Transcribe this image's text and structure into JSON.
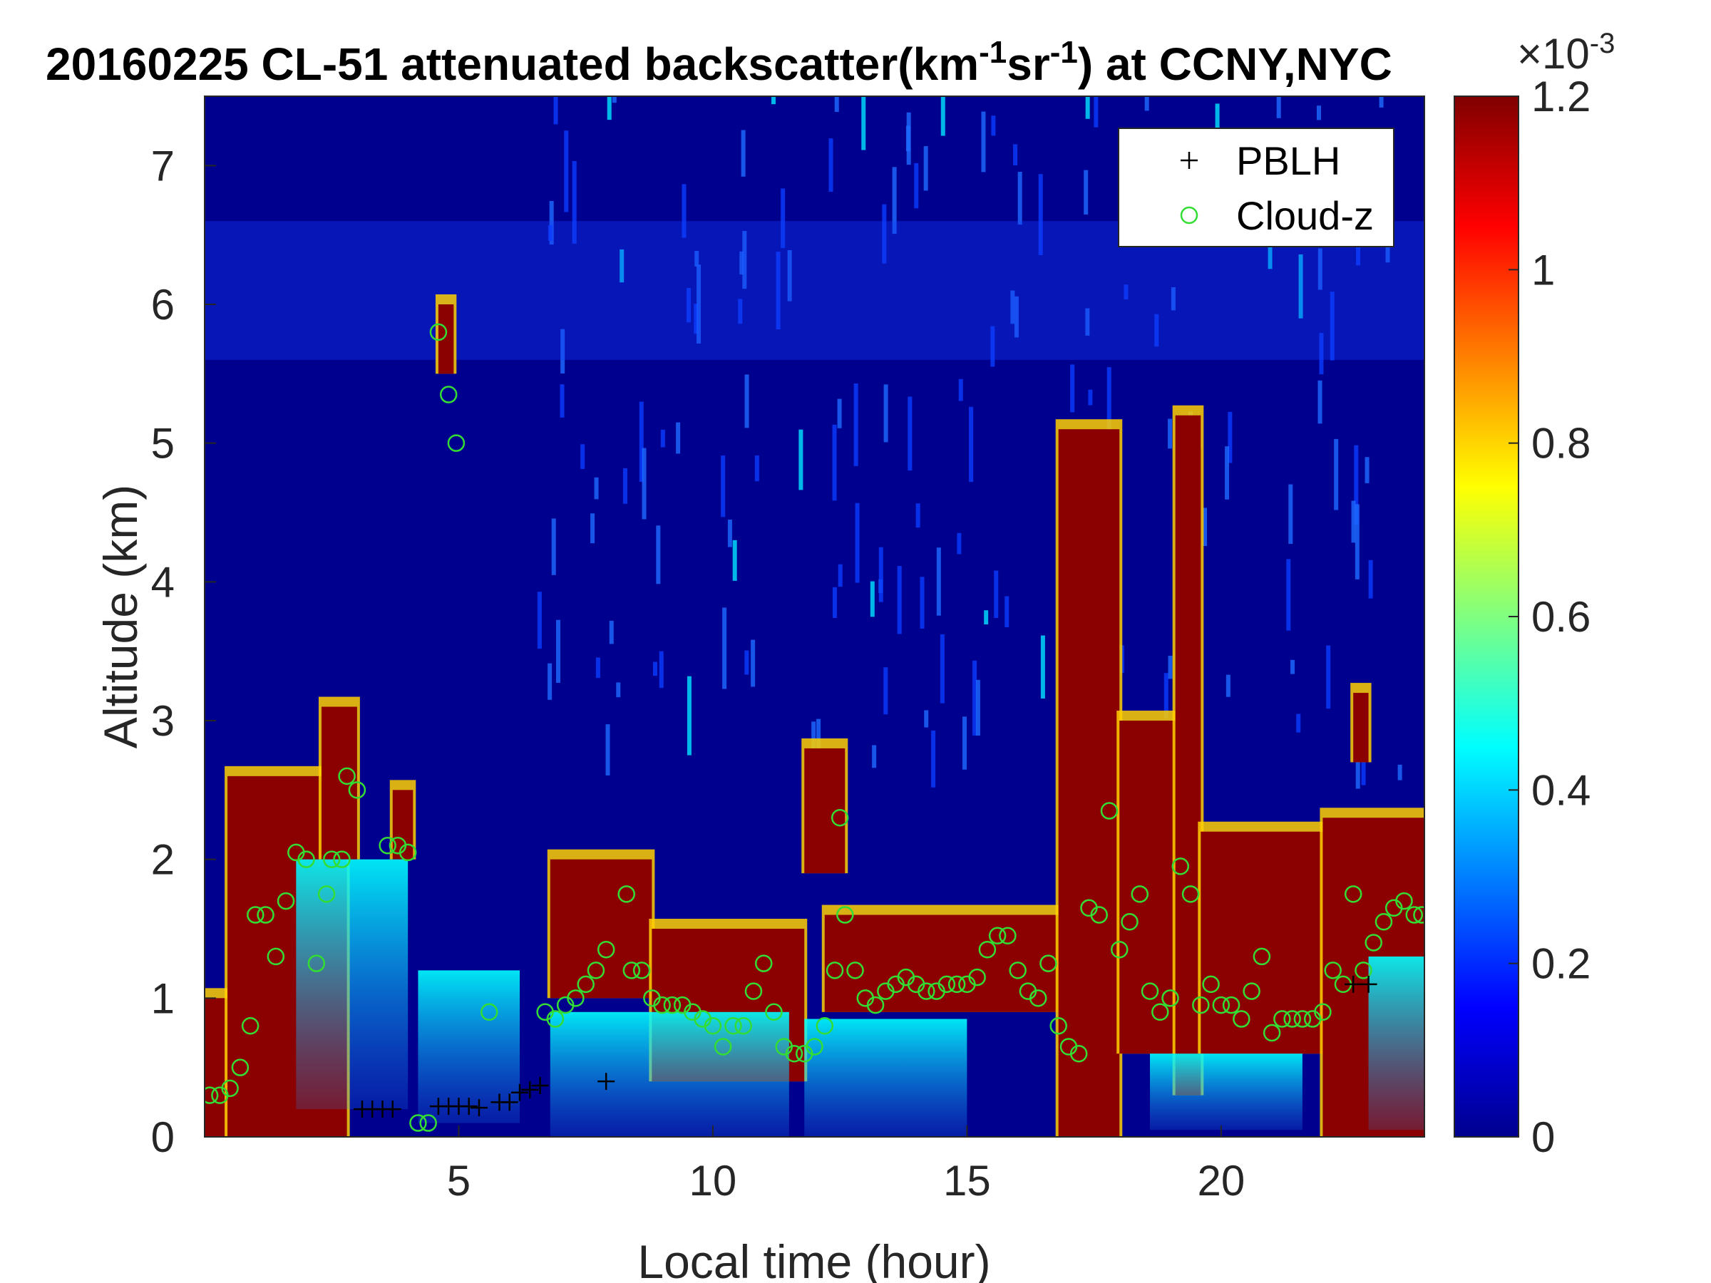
{
  "chart_data": {
    "type": "heatmap",
    "title_main": "20160225  CL-51 attenuated backscatter(km",
    "title_exp1": "-1",
    "title_mid": "sr",
    "title_exp2": "-1",
    "title_end": ") at CCNY,NYC",
    "xlabel": "Local time (hour)",
    "ylabel": "Altitude (km)",
    "xlim": [
      0,
      24
    ],
    "ylim": [
      0,
      7.5
    ],
    "xticks": [
      5,
      10,
      15,
      20
    ],
    "yticks": [
      0,
      1,
      2,
      3,
      4,
      5,
      6,
      7
    ],
    "colorbar": {
      "colormap": "jet",
      "clim": [
        0,
        1.2
      ],
      "ticks": [
        0,
        0.2,
        0.4,
        0.6,
        0.8,
        1,
        1.2
      ],
      "ticklabels": [
        "0",
        "0.2",
        "0.4",
        "0.6",
        "0.8",
        "1",
        "1.2"
      ],
      "exponent_base": "×10",
      "exponent_power": "-3"
    },
    "legend": {
      "placement": "top-right",
      "entries": [
        {
          "label": "PBLH",
          "marker": "+",
          "color": "#000000"
        },
        {
          "label": "Cloud-z",
          "marker": "o",
          "color": "#33dd33"
        }
      ]
    },
    "background_range": {
      "low": 0.0,
      "high": 1.2
    },
    "field_description_note": "",
    "cloud_columns": [
      {
        "x0": 0.0,
        "x1": 0.45,
        "top": 1.0,
        "bottom": 0.0
      },
      {
        "x0": 0.45,
        "x1": 2.8,
        "top": 2.6,
        "bottom": 0.0
      },
      {
        "x0": 2.3,
        "x1": 3.0,
        "top": 3.1,
        "bottom": 2.0
      },
      {
        "x0": 3.7,
        "x1": 4.1,
        "top": 2.5,
        "bottom": 2.0
      },
      {
        "x0": 4.6,
        "x1": 4.9,
        "top": 6.0,
        "bottom": 5.5
      },
      {
        "x0": 6.8,
        "x1": 8.8,
        "top": 2.0,
        "bottom": 1.0
      },
      {
        "x0": 8.8,
        "x1": 11.8,
        "top": 1.5,
        "bottom": 0.4
      },
      {
        "x0": 11.8,
        "x1": 12.6,
        "top": 2.8,
        "bottom": 1.9
      },
      {
        "x0": 12.2,
        "x1": 16.8,
        "top": 1.6,
        "bottom": 0.9
      },
      {
        "x0": 16.8,
        "x1": 18.0,
        "top": 5.1,
        "bottom": 0.0
      },
      {
        "x0": 18.0,
        "x1": 19.1,
        "top": 3.0,
        "bottom": 0.6
      },
      {
        "x0": 19.1,
        "x1": 19.6,
        "top": 5.2,
        "bottom": 0.3
      },
      {
        "x0": 19.6,
        "x1": 22.0,
        "top": 2.2,
        "bottom": 0.6
      },
      {
        "x0": 22.6,
        "x1": 22.9,
        "top": 3.2,
        "bottom": 2.7
      },
      {
        "x0": 22.0,
        "x1": 24.0,
        "top": 2.3,
        "bottom": 0.0
      }
    ],
    "pblh": [
      {
        "x": 3.1,
        "y": 0.2
      },
      {
        "x": 3.3,
        "y": 0.2
      },
      {
        "x": 3.5,
        "y": 0.2
      },
      {
        "x": 3.7,
        "y": 0.2
      },
      {
        "x": 4.6,
        "y": 0.22
      },
      {
        "x": 4.8,
        "y": 0.22
      },
      {
        "x": 5.0,
        "y": 0.22
      },
      {
        "x": 5.2,
        "y": 0.22
      },
      {
        "x": 5.4,
        "y": 0.21
      },
      {
        "x": 5.8,
        "y": 0.25
      },
      {
        "x": 6.0,
        "y": 0.25
      },
      {
        "x": 6.2,
        "y": 0.32
      },
      {
        "x": 6.4,
        "y": 0.34
      },
      {
        "x": 6.6,
        "y": 0.37
      },
      {
        "x": 7.9,
        "y": 0.4
      },
      {
        "x": 22.6,
        "y": 1.1
      },
      {
        "x": 22.9,
        "y": 1.1
      }
    ],
    "cloud_z": [
      {
        "x": 0.1,
        "y": 0.3
      },
      {
        "x": 0.3,
        "y": 0.3
      },
      {
        "x": 0.5,
        "y": 0.35
      },
      {
        "x": 0.7,
        "y": 0.5
      },
      {
        "x": 0.9,
        "y": 0.8
      },
      {
        "x": 1.0,
        "y": 1.6
      },
      {
        "x": 1.2,
        "y": 1.6
      },
      {
        "x": 1.4,
        "y": 1.3
      },
      {
        "x": 1.6,
        "y": 1.7
      },
      {
        "x": 1.8,
        "y": 2.05
      },
      {
        "x": 2.0,
        "y": 2.0
      },
      {
        "x": 2.2,
        "y": 1.25
      },
      {
        "x": 2.4,
        "y": 1.75
      },
      {
        "x": 2.5,
        "y": 2.0
      },
      {
        "x": 2.7,
        "y": 2.0
      },
      {
        "x": 2.8,
        "y": 2.6
      },
      {
        "x": 3.0,
        "y": 2.5
      },
      {
        "x": 3.6,
        "y": 2.1
      },
      {
        "x": 3.8,
        "y": 2.1
      },
      {
        "x": 4.0,
        "y": 2.05
      },
      {
        "x": 4.2,
        "y": 0.1
      },
      {
        "x": 4.4,
        "y": 0.1
      },
      {
        "x": 4.6,
        "y": 5.8
      },
      {
        "x": 4.8,
        "y": 5.35
      },
      {
        "x": 4.95,
        "y": 5.0
      },
      {
        "x": 5.6,
        "y": 0.9
      },
      {
        "x": 6.7,
        "y": 0.9
      },
      {
        "x": 6.9,
        "y": 0.85
      },
      {
        "x": 7.1,
        "y": 0.95
      },
      {
        "x": 7.3,
        "y": 1.0
      },
      {
        "x": 7.5,
        "y": 1.1
      },
      {
        "x": 7.7,
        "y": 1.2
      },
      {
        "x": 7.9,
        "y": 1.35
      },
      {
        "x": 8.3,
        "y": 1.75
      },
      {
        "x": 8.4,
        "y": 1.2
      },
      {
        "x": 8.6,
        "y": 1.2
      },
      {
        "x": 8.8,
        "y": 1.0
      },
      {
        "x": 9.0,
        "y": 0.95
      },
      {
        "x": 9.2,
        "y": 0.95
      },
      {
        "x": 9.4,
        "y": 0.95
      },
      {
        "x": 9.6,
        "y": 0.9
      },
      {
        "x": 9.8,
        "y": 0.85
      },
      {
        "x": 10.0,
        "y": 0.8
      },
      {
        "x": 10.2,
        "y": 0.65
      },
      {
        "x": 10.4,
        "y": 0.8
      },
      {
        "x": 10.6,
        "y": 0.8
      },
      {
        "x": 10.8,
        "y": 1.05
      },
      {
        "x": 11.0,
        "y": 1.25
      },
      {
        "x": 11.2,
        "y": 0.9
      },
      {
        "x": 11.4,
        "y": 0.65
      },
      {
        "x": 11.6,
        "y": 0.6
      },
      {
        "x": 11.8,
        "y": 0.6
      },
      {
        "x": 12.0,
        "y": 0.65
      },
      {
        "x": 12.2,
        "y": 0.8
      },
      {
        "x": 12.4,
        "y": 1.2
      },
      {
        "x": 12.5,
        "y": 2.3
      },
      {
        "x": 12.6,
        "y": 1.6
      },
      {
        "x": 12.8,
        "y": 1.2
      },
      {
        "x": 13.0,
        "y": 1.0
      },
      {
        "x": 13.2,
        "y": 0.95
      },
      {
        "x": 13.4,
        "y": 1.05
      },
      {
        "x": 13.6,
        "y": 1.1
      },
      {
        "x": 13.8,
        "y": 1.15
      },
      {
        "x": 14.0,
        "y": 1.1
      },
      {
        "x": 14.2,
        "y": 1.05
      },
      {
        "x": 14.4,
        "y": 1.05
      },
      {
        "x": 14.6,
        "y": 1.1
      },
      {
        "x": 14.8,
        "y": 1.1
      },
      {
        "x": 15.0,
        "y": 1.1
      },
      {
        "x": 15.2,
        "y": 1.15
      },
      {
        "x": 15.4,
        "y": 1.35
      },
      {
        "x": 15.6,
        "y": 1.45
      },
      {
        "x": 15.8,
        "y": 1.45
      },
      {
        "x": 16.0,
        "y": 1.2
      },
      {
        "x": 16.2,
        "y": 1.05
      },
      {
        "x": 16.4,
        "y": 1.0
      },
      {
        "x": 16.6,
        "y": 1.25
      },
      {
        "x": 16.8,
        "y": 0.8
      },
      {
        "x": 17.0,
        "y": 0.65
      },
      {
        "x": 17.2,
        "y": 0.6
      },
      {
        "x": 17.4,
        "y": 1.65
      },
      {
        "x": 17.6,
        "y": 1.6
      },
      {
        "x": 17.8,
        "y": 2.35
      },
      {
        "x": 18.0,
        "y": 1.35
      },
      {
        "x": 18.2,
        "y": 1.55
      },
      {
        "x": 18.4,
        "y": 1.75
      },
      {
        "x": 18.6,
        "y": 1.05
      },
      {
        "x": 18.8,
        "y": 0.9
      },
      {
        "x": 19.0,
        "y": 1.0
      },
      {
        "x": 19.2,
        "y": 1.95
      },
      {
        "x": 19.4,
        "y": 1.75
      },
      {
        "x": 19.6,
        "y": 0.95
      },
      {
        "x": 19.8,
        "y": 1.1
      },
      {
        "x": 20.0,
        "y": 0.95
      },
      {
        "x": 20.2,
        "y": 0.95
      },
      {
        "x": 20.4,
        "y": 0.85
      },
      {
        "x": 20.6,
        "y": 1.05
      },
      {
        "x": 20.8,
        "y": 1.3
      },
      {
        "x": 21.0,
        "y": 0.75
      },
      {
        "x": 21.2,
        "y": 0.85
      },
      {
        "x": 21.4,
        "y": 0.85
      },
      {
        "x": 21.6,
        "y": 0.85
      },
      {
        "x": 21.8,
        "y": 0.85
      },
      {
        "x": 22.0,
        "y": 0.9
      },
      {
        "x": 22.2,
        "y": 1.2
      },
      {
        "x": 22.4,
        "y": 1.1
      },
      {
        "x": 22.6,
        "y": 1.75
      },
      {
        "x": 22.8,
        "y": 1.2
      },
      {
        "x": 23.0,
        "y": 1.4
      },
      {
        "x": 23.2,
        "y": 1.55
      },
      {
        "x": 23.4,
        "y": 1.65
      },
      {
        "x": 23.6,
        "y": 1.7
      },
      {
        "x": 23.8,
        "y": 1.6
      },
      {
        "x": 23.95,
        "y": 1.6
      }
    ]
  }
}
